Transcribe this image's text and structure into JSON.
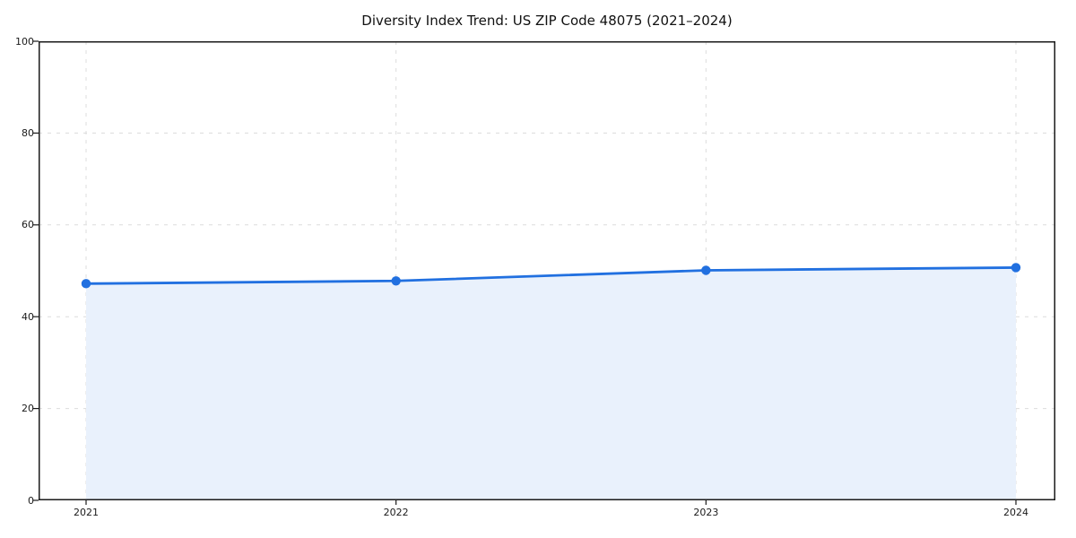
{
  "chart_data": {
    "type": "line",
    "title": "Diversity Index Trend: US ZIP Code 48075 (2021–2024)",
    "x": [
      2021,
      2022,
      2023,
      2024
    ],
    "xticklabels": [
      "2021",
      "2022",
      "2023",
      "2024"
    ],
    "series": [
      {
        "name": "Diversity Index",
        "values": [
          47.2,
          47.8,
          50.1,
          50.7
        ]
      }
    ],
    "xlabel": "",
    "ylabel": "",
    "ylim": [
      0,
      100
    ],
    "yticks": [
      0,
      20,
      40,
      60,
      80,
      100
    ],
    "grid": "dashed",
    "legend": "none",
    "area_fill": true,
    "marker": "circle",
    "colors": {
      "line": "#2170e0",
      "marker": "#2170e0",
      "area": "#e9f1fc",
      "grid": "#dcdcdc",
      "spine": "#1a1a1a",
      "tick_label": "#1a1a1a",
      "background": "#ffffff"
    }
  }
}
